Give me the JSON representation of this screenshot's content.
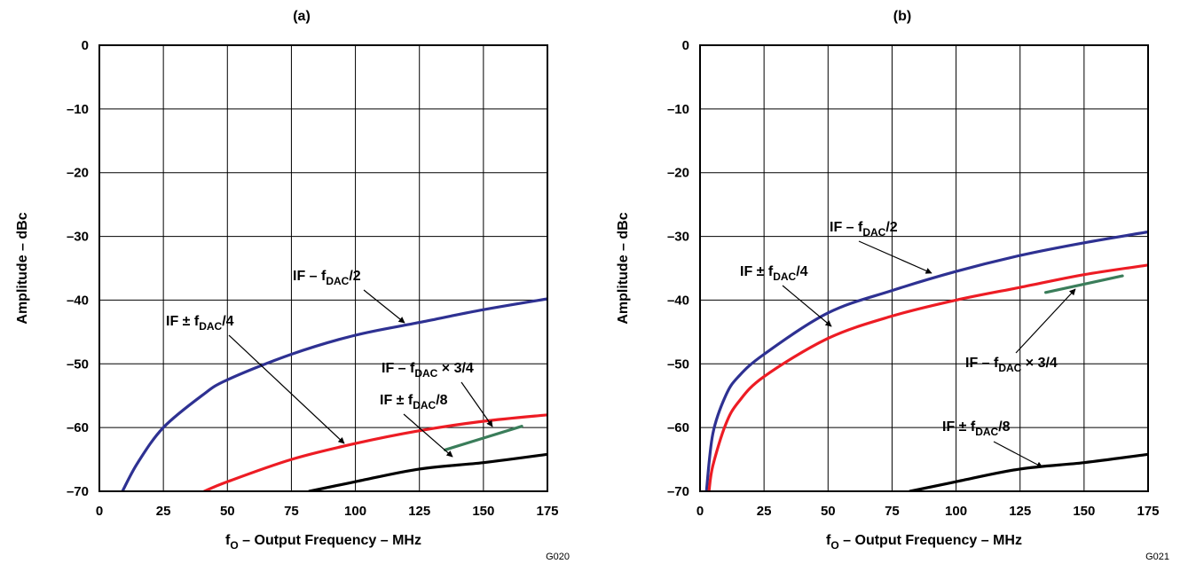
{
  "chart_data": [
    {
      "type": "line",
      "title": "(a)",
      "xlabel": {
        "prefix": "f",
        "sub": "O",
        "rest": " – Output Frequency – MHz"
      },
      "ylabel": "Amplitude – dBc",
      "xlim": [
        0,
        175
      ],
      "ylim": [
        -70,
        0
      ],
      "xticks": [
        "0",
        "25",
        "50",
        "75",
        "100",
        "125",
        "150",
        "175"
      ],
      "yticks": [
        "0",
        "–10",
        "–20",
        "–30",
        "–40",
        "–50",
        "–60",
        "–70"
      ],
      "grid": true,
      "code": "G020",
      "series": [
        {
          "color": "#2e3192",
          "x": [
            9,
            15,
            25,
            40,
            50,
            75,
            100,
            125,
            150,
            175
          ],
          "y": [
            -70,
            -65.5,
            -60,
            -55,
            -52.5,
            -48.5,
            -45.5,
            -43.5,
            -41.5,
            -39.8
          ]
        },
        {
          "color": "#ed1c24",
          "x": [
            41,
            50,
            75,
            100,
            125,
            150,
            175
          ],
          "y": [
            -70,
            -68.5,
            -65,
            -62.5,
            -60.5,
            -59,
            -58
          ]
        },
        {
          "color": "#000000",
          "x": [
            82,
            100,
            125,
            150,
            175
          ],
          "y": [
            -70,
            -68.5,
            -66.5,
            -65.5,
            -64.2
          ]
        },
        {
          "color": "#3a7d5a",
          "x": [
            135,
            165
          ],
          "y": [
            -63.5,
            -59.8
          ]
        }
      ],
      "annotations": [
        {
          "parts": [
            "IF – f",
            "DAC",
            "/2"
          ]
        },
        {
          "parts": [
            "IF ± f",
            "DAC",
            "/4"
          ]
        },
        {
          "parts": [
            "IF – f",
            "DAC",
            " × ",
            "3/4"
          ]
        },
        {
          "parts": [
            "IF ± f",
            "DAC",
            "/8"
          ]
        }
      ]
    },
    {
      "type": "line",
      "title": "(b)",
      "xlabel": {
        "prefix": "f",
        "sub": "O",
        "rest": " – Output Frequency – MHz"
      },
      "ylabel": "Amplitude – dBc",
      "xlim": [
        0,
        175
      ],
      "ylim": [
        -70,
        0
      ],
      "xticks": [
        "0",
        "25",
        "50",
        "75",
        "100",
        "125",
        "150",
        "175"
      ],
      "yticks": [
        "0",
        "–10",
        "–20",
        "–30",
        "–40",
        "–50",
        "–60",
        "–70"
      ],
      "grid": true,
      "code": "G021",
      "series": [
        {
          "color": "#2e3192",
          "x": [
            2.5,
            5,
            10,
            15,
            25,
            50,
            75,
            100,
            125,
            150,
            175
          ],
          "y": [
            -70,
            -61,
            -55,
            -52,
            -48.5,
            -42,
            -38.5,
            -35.5,
            -33,
            -31,
            -29.3
          ]
        },
        {
          "color": "#ed1c24",
          "x": [
            3.5,
            5,
            10,
            15,
            25,
            50,
            75,
            100,
            125,
            150,
            175
          ],
          "y": [
            -70,
            -66,
            -59.5,
            -56,
            -52,
            -46,
            -42.5,
            -40,
            -38,
            -36,
            -34.5
          ]
        },
        {
          "color": "#000000",
          "x": [
            82,
            100,
            125,
            150,
            175
          ],
          "y": [
            -70,
            -68.5,
            -66.5,
            -65.5,
            -64.2
          ]
        },
        {
          "color": "#3a7d5a",
          "x": [
            135,
            165
          ],
          "y": [
            -38.8,
            -36.2
          ]
        }
      ],
      "annotations": [
        {
          "parts": [
            "IF – f",
            "DAC",
            "/2"
          ]
        },
        {
          "parts": [
            "IF ± f",
            "DAC",
            "/4"
          ]
        },
        {
          "parts": [
            "IF – f",
            "DAC",
            " × ",
            "3/4"
          ]
        },
        {
          "parts": [
            "IF ± f",
            "DAC",
            "/8"
          ]
        }
      ]
    }
  ]
}
